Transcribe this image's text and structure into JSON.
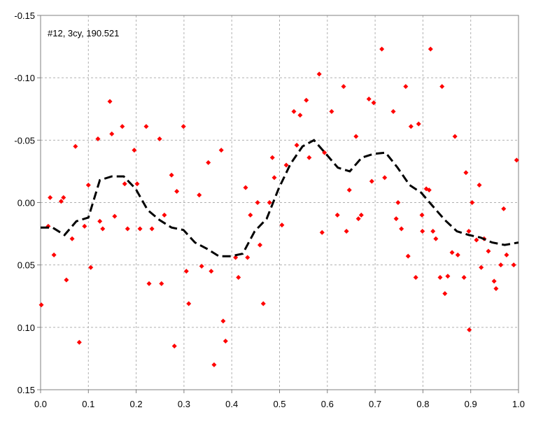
{
  "chart_data": {
    "type": "scatter",
    "annotation": "#12, 3cy, 190.521",
    "xlim": [
      0,
      1
    ],
    "xticks": [
      {
        "value": 0,
        "label": "0.0"
      },
      0.1,
      0.2,
      0.3,
      0.4,
      0.5,
      0.6,
      0.7,
      0.8,
      0.9,
      {
        "value": 1,
        "label": "1.0"
      }
    ],
    "ylim": [
      -0.15,
      0.15
    ],
    "y_inverted": true,
    "yticks": [
      -0.15,
      {
        "value": -0.1,
        "label": "-0.10"
      },
      -0.05,
      {
        "value": 0,
        "label": "0.00"
      },
      0.05,
      {
        "value": 0.1,
        "label": "0.10"
      },
      0.15
    ],
    "grid": true,
    "series": [
      {
        "type": "scatter",
        "color": "#ff0000",
        "x": [
          0.0015,
          0.02,
          0.016,
          0.028,
          0.043,
          0.048,
          0.054,
          0.066,
          0.073,
          0.081,
          0.092,
          0.1,
          0.105,
          0.12,
          0.124,
          0.13,
          0.145,
          0.149,
          0.155,
          0.171,
          0.176,
          0.182,
          0.196,
          0.202,
          0.208,
          0.221,
          0.227,
          0.233,
          0.249,
          0.253,
          0.259,
          0.274,
          0.28,
          0.285,
          0.299,
          0.305,
          0.31,
          0.332,
          0.337,
          0.351,
          0.357,
          0.363,
          0.378,
          0.382,
          0.387,
          0.408,
          0.414,
          0.429,
          0.433,
          0.439,
          0.454,
          0.459,
          0.466,
          0.479,
          0.485,
          0.489,
          0.505,
          0.514,
          0.53,
          0.536,
          0.543,
          0.556,
          0.562,
          0.583,
          0.589,
          0.594,
          0.609,
          0.621,
          0.634,
          0.64,
          0.646,
          0.66,
          0.665,
          0.671,
          0.687,
          0.693,
          0.697,
          0.714,
          0.72,
          0.738,
          0.744,
          0.748,
          0.755,
          0.764,
          0.769,
          0.775,
          0.785,
          0.791,
          0.798,
          0.799,
          0.807,
          0.813,
          0.816,
          0.821,
          0.827,
          0.836,
          0.84,
          0.846,
          0.852,
          0.861,
          0.867,
          0.873,
          0.886,
          0.89,
          0.896,
          0.897,
          0.903,
          0.912,
          0.918,
          0.922,
          0.928,
          0.937,
          0.949,
          0.953,
          0.963,
          0.969,
          0.975,
          0.99,
          0.996
        ],
        "values": [
          0.082,
          -0.004,
          0.019,
          0.042,
          -0.001,
          -0.004,
          0.062,
          0.029,
          -0.045,
          0.112,
          0.019,
          -0.014,
          0.052,
          -0.051,
          0.015,
          0.021,
          -0.081,
          -0.055,
          0.011,
          -0.061,
          -0.015,
          0.021,
          -0.042,
          -0.015,
          0.021,
          -0.061,
          0.065,
          0.021,
          -0.051,
          0.065,
          0.01,
          -0.022,
          0.115,
          -0.009,
          -0.061,
          0.055,
          0.081,
          -0.006,
          0.051,
          -0.032,
          0.055,
          0.13,
          -0.042,
          0.095,
          0.111,
          0.044,
          0.06,
          -0.012,
          0.044,
          0.01,
          0.0,
          0.034,
          0.081,
          0.0,
          -0.036,
          -0.02,
          0.018,
          -0.03,
          -0.073,
          -0.046,
          -0.07,
          -0.082,
          -0.036,
          -0.103,
          0.024,
          -0.04,
          -0.073,
          0.01,
          -0.093,
          0.023,
          -0.01,
          -0.053,
          0.013,
          0.01,
          -0.083,
          -0.017,
          -0.08,
          -0.123,
          -0.02,
          -0.073,
          0.013,
          0.0,
          0.021,
          -0.093,
          0.043,
          -0.061,
          0.06,
          -0.063,
          0.01,
          0.023,
          -0.011,
          -0.01,
          -0.123,
          0.023,
          0.029,
          0.06,
          -0.093,
          0.073,
          0.059,
          0.04,
          -0.053,
          0.042,
          0.06,
          -0.024,
          0.023,
          0.102,
          0.0,
          0.03,
          -0.014,
          0.052,
          0.029,
          0.039,
          0.063,
          0.069,
          0.05,
          0.005,
          0.042,
          0.05,
          -0.034
        ]
      },
      {
        "type": "line",
        "color": "#000000",
        "dashed": true,
        "x": [
          0,
          0.025,
          0.05,
          0.075,
          0.1,
          0.124,
          0.149,
          0.174,
          0.199,
          0.224,
          0.249,
          0.274,
          0.299,
          0.323,
          0.348,
          0.373,
          0.398,
          0.423,
          0.448,
          0.473,
          0.498,
          0.523,
          0.548,
          0.572,
          0.597,
          0.622,
          0.647,
          0.672,
          0.697,
          0.722,
          0.747,
          0.772,
          0.796,
          0.821,
          0.846,
          0.871,
          0.896,
          0.92,
          0.945,
          0.971,
          1.0
        ],
        "values": [
          0.02,
          0.02,
          0.026,
          0.015,
          0.012,
          -0.018,
          -0.021,
          -0.021,
          -0.011,
          0.006,
          0.014,
          0.02,
          0.022,
          0.032,
          0.037,
          0.043,
          0.043,
          0.041,
          0.023,
          0.013,
          -0.011,
          -0.031,
          -0.045,
          -0.05,
          -0.039,
          -0.028,
          -0.025,
          -0.036,
          -0.039,
          -0.04,
          -0.028,
          -0.014,
          -0.008,
          0.003,
          0.014,
          0.023,
          0.026,
          0.028,
          0.032,
          0.034,
          0.032
        ]
      }
    ]
  }
}
